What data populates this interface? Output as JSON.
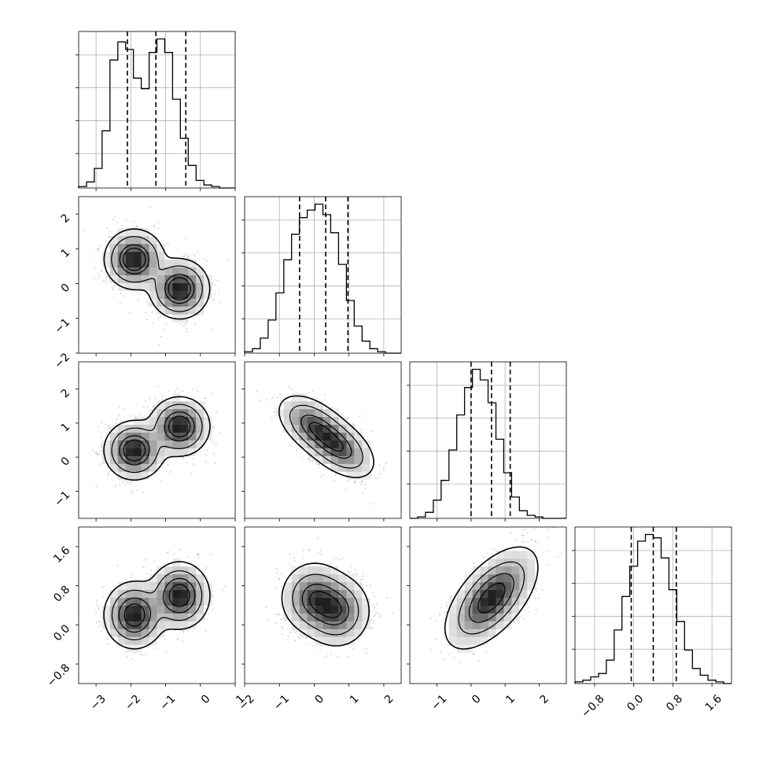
{
  "chart_data": {
    "type": "corner",
    "grid": true,
    "legend": "none",
    "parameters": [
      {
        "range": [
          -3.5,
          1.0
        ],
        "ticks": [
          -3,
          -2,
          -1,
          0,
          1
        ],
        "tick_labels": [
          "−3",
          "−2",
          "−1",
          "0",
          "1"
        ],
        "quantiles": [
          -2.1,
          -1.28,
          -0.42
        ]
      },
      {
        "range": [
          -2.0,
          2.5
        ],
        "ticks": [
          -2,
          -1,
          0,
          1,
          2
        ],
        "tick_labels": [
          "−2",
          "−1",
          "0",
          "1",
          "2"
        ],
        "quantiles": [
          -0.42,
          0.33,
          0.97
        ]
      },
      {
        "range": [
          -1.8,
          2.8
        ],
        "ticks": [
          -1,
          0,
          1,
          2
        ],
        "tick_labels": [
          "−1",
          "0",
          "1",
          "2"
        ],
        "quantiles": [
          0.0,
          0.6,
          1.15
        ]
      },
      {
        "range": [
          -1.2,
          2.0
        ],
        "ticks": [
          -0.8,
          0.0,
          0.8,
          1.6
        ],
        "tick_labels": [
          "−0.8",
          "0.0",
          "0.8",
          "1.6"
        ],
        "quantiles": [
          -0.05,
          0.4,
          0.87
        ]
      }
    ],
    "histograms": [
      {
        "param": 0,
        "bins": 20,
        "counts": [
          1,
          4,
          13,
          38,
          85,
          97,
          92,
          73,
          66,
          90,
          99,
          90,
          59,
          33,
          15,
          5,
          2,
          1,
          0,
          0
        ]
      },
      {
        "param": 1,
        "bins": 20,
        "counts": [
          1,
          3,
          10,
          22,
          40,
          62,
          79,
          90,
          95,
          99,
          92,
          80,
          59,
          35,
          18,
          8,
          3,
          1,
          0,
          0
        ]
      },
      {
        "param": 2,
        "bins": 20,
        "counts": [
          0,
          1,
          4,
          12,
          25,
          45,
          68,
          86,
          98,
          91,
          76,
          52,
          30,
          14,
          5,
          2,
          1,
          0,
          0,
          0
        ]
      },
      {
        "param": 3,
        "bins": 20,
        "counts": [
          1,
          2,
          4,
          6,
          14,
          32,
          52,
          70,
          85,
          89,
          87,
          75,
          56,
          37,
          20,
          9,
          5,
          2,
          1,
          0
        ]
      }
    ],
    "joint_distributions": [
      {
        "x_param": 0,
        "y_param": 1,
        "modes": [
          {
            "x": -1.9,
            "y": 0.7,
            "sx": 0.38,
            "sy": 0.38,
            "rho": 0.0,
            "w": 0.5
          },
          {
            "x": -0.6,
            "y": -0.15,
            "sx": 0.38,
            "sy": 0.38,
            "rho": 0.0,
            "w": 0.5
          }
        ]
      },
      {
        "x_param": 0,
        "y_param": 2,
        "modes": [
          {
            "x": -1.9,
            "y": 0.2,
            "sx": 0.38,
            "sy": 0.38,
            "rho": 0.0,
            "w": 0.5
          },
          {
            "x": -0.6,
            "y": 0.9,
            "sx": 0.38,
            "sy": 0.38,
            "rho": 0.0,
            "w": 0.5
          }
        ]
      },
      {
        "x_param": 0,
        "y_param": 3,
        "modes": [
          {
            "x": -1.9,
            "y": 0.2,
            "sx": 0.38,
            "sy": 0.3,
            "rho": 0.0,
            "w": 0.5
          },
          {
            "x": -0.6,
            "y": 0.6,
            "sx": 0.38,
            "sy": 0.3,
            "rho": 0.0,
            "w": 0.5
          }
        ]
      },
      {
        "x_param": 1,
        "y_param": 2,
        "modes": [
          {
            "x": 0.0,
            "y": 0.9,
            "sx": 0.45,
            "sy": 0.4,
            "rho": -0.5,
            "w": 0.5
          },
          {
            "x": 0.7,
            "y": 0.3,
            "sx": 0.45,
            "sy": 0.4,
            "rho": -0.5,
            "w": 0.5
          }
        ]
      },
      {
        "x_param": 1,
        "y_param": 3,
        "modes": [
          {
            "x": 0.0,
            "y": 0.55,
            "sx": 0.42,
            "sy": 0.32,
            "rho": 0.0,
            "w": 0.5
          },
          {
            "x": 0.65,
            "y": 0.28,
            "sx": 0.42,
            "sy": 0.32,
            "rho": 0.0,
            "w": 0.5
          }
        ]
      },
      {
        "x_param": 2,
        "y_param": 3,
        "modes": [
          {
            "x": 0.6,
            "y": 0.55,
            "sx": 0.55,
            "sy": 0.42,
            "rho": 0.6,
            "w": 1.0
          }
        ]
      }
    ],
    "contour_levels": [
      0.25,
      0.5,
      0.8,
      0.95
    ],
    "colors": {
      "line": "#000000",
      "grid": "#b0b0b0",
      "points": "#000000",
      "frame": "#000000"
    }
  }
}
